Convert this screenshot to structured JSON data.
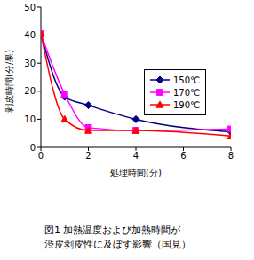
{
  "chart_data": {
    "type": "line",
    "title": "図1 加熱温度および加熱時間が\n渋皮剥皮性に及ぼす影響（国見）",
    "x_label": "処理時間(分)",
    "y_label": "剥皮時間(分/果)",
    "x": [
      0,
      1,
      2,
      4,
      8
    ],
    "series": [
      {
        "name": "150℃",
        "color": "#000080",
        "marker": "diamond",
        "values": [
          40.5,
          18,
          15,
          10,
          5.5
        ]
      },
      {
        "name": "170℃",
        "color": "#ff00ff",
        "marker": "square",
        "values": [
          40.5,
          19,
          7,
          6,
          6.5
        ]
      },
      {
        "name": "190℃",
        "color": "#ff0000",
        "marker": "triangle",
        "values": [
          40.5,
          10,
          6,
          6,
          4
        ]
      }
    ],
    "line_style": "smooth",
    "xlim": [
      0,
      8
    ],
    "xticks": [
      0,
      2,
      4,
      6,
      8
    ],
    "ylim": [
      0,
      50
    ],
    "yticks": [
      0,
      10,
      20,
      30,
      40,
      50
    ],
    "legend": "right"
  }
}
